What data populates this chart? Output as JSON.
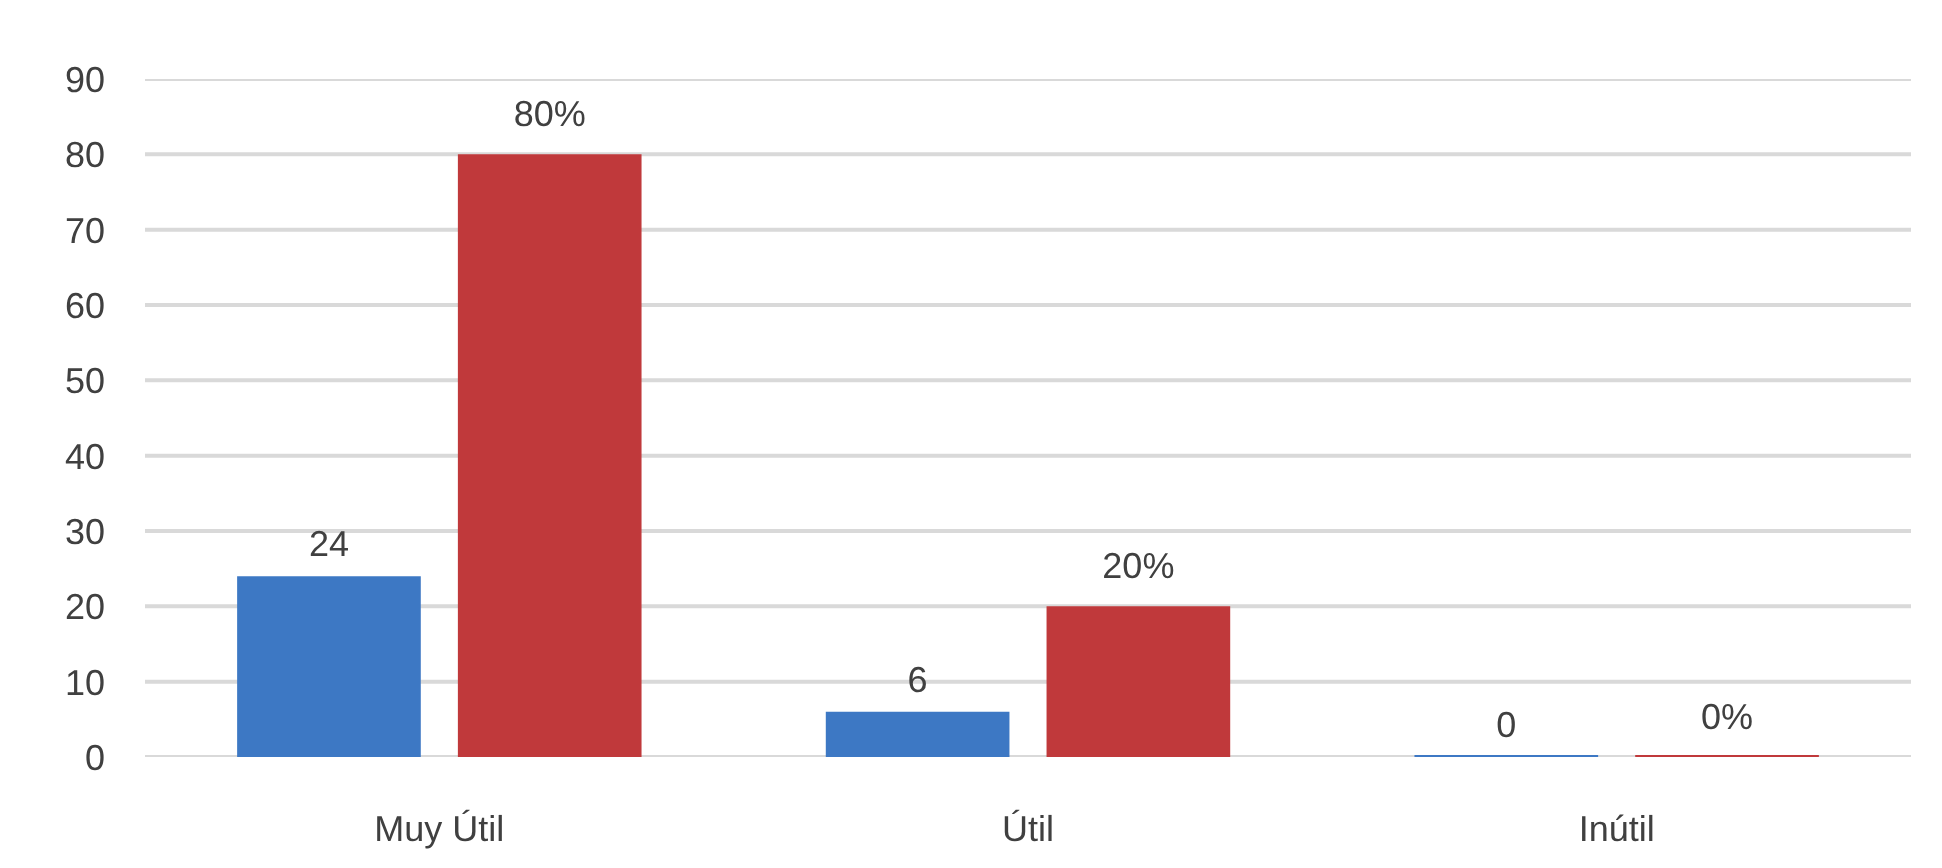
{
  "chart_data": {
    "type": "bar",
    "categories": [
      "Muy Útil",
      "Útil",
      "Inútil"
    ],
    "series": [
      {
        "color": "#3d78c4",
        "values": [
          24,
          6,
          0
        ],
        "value_labels": [
          "24",
          "6",
          "0"
        ]
      },
      {
        "color": "#c0393b",
        "values": [
          80,
          20,
          0
        ],
        "value_labels": [
          "80%",
          "20%",
          "0%"
        ]
      }
    ],
    "ylim": [
      0,
      90
    ],
    "yticks": [
      0,
      10,
      20,
      30,
      40,
      50,
      60,
      70,
      80,
      90
    ],
    "grid": "y"
  }
}
